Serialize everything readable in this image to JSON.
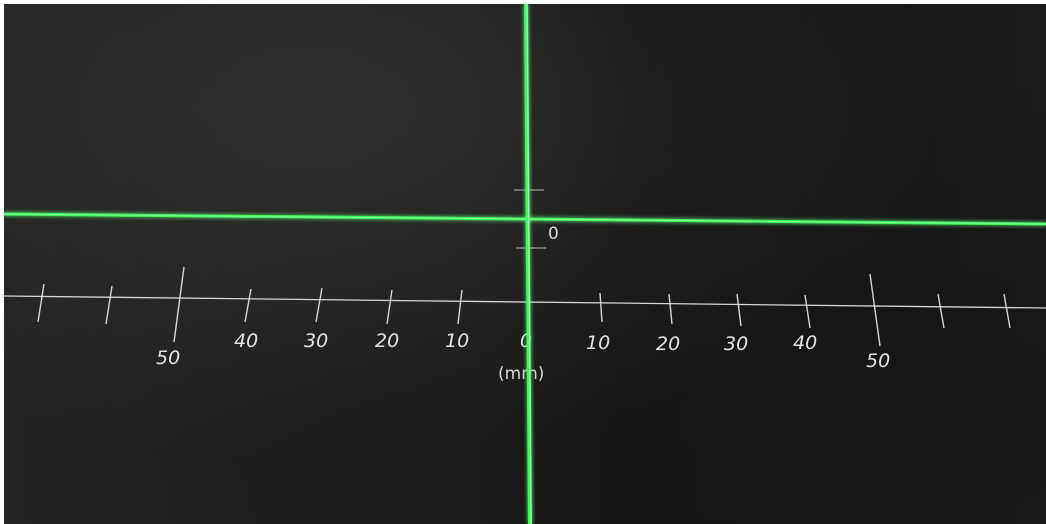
{
  "scene": {
    "description_id": "laser-crosshair-on-ruler-target"
  },
  "ruler": {
    "unit_label": "(mm)",
    "origin_label": "0",
    "left_labels": [
      "50",
      "40",
      "30",
      "20",
      "10"
    ],
    "right_labels": [
      "10",
      "20",
      "30",
      "40",
      "50"
    ],
    "center_label": "0",
    "vertical_zero_label": "0"
  },
  "colors": {
    "laser": "#39ff5a",
    "ruler_line": "#d0d0d0",
    "background": "#1c1c1b"
  }
}
